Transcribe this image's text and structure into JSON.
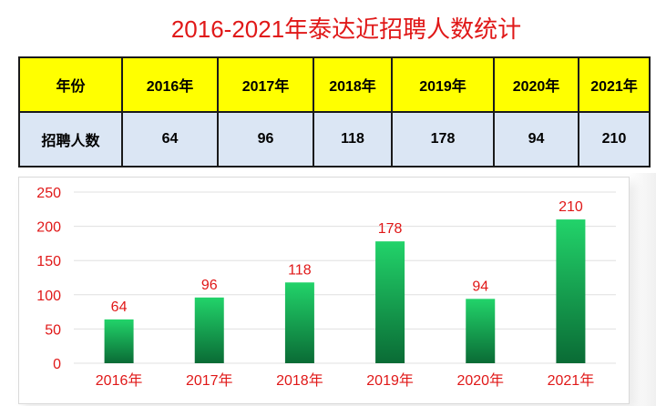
{
  "title": "2016-2021年泰达近招聘人数统计",
  "table": {
    "header": [
      "年份",
      "2016年",
      "2017年",
      "2018年",
      "2019年",
      "2020年",
      "2021年"
    ],
    "row_label": "招聘人数",
    "values": [
      "64",
      "96",
      "118",
      "178",
      "94",
      "210"
    ]
  },
  "chart_data": {
    "type": "bar",
    "categories": [
      "2016年",
      "2017年",
      "2018年",
      "2019年",
      "2020年",
      "2021年"
    ],
    "values": [
      64,
      96,
      118,
      178,
      94,
      210
    ],
    "ylim": [
      0,
      250
    ],
    "yticks": [
      0,
      50,
      100,
      150,
      200,
      250
    ],
    "grid": true,
    "colors": {
      "bar_top": "#22d36a",
      "bar_bottom": "#0a6b35",
      "label": "#e01818",
      "tick_label": "#e01818",
      "grid": "#e0e0e0"
    }
  }
}
